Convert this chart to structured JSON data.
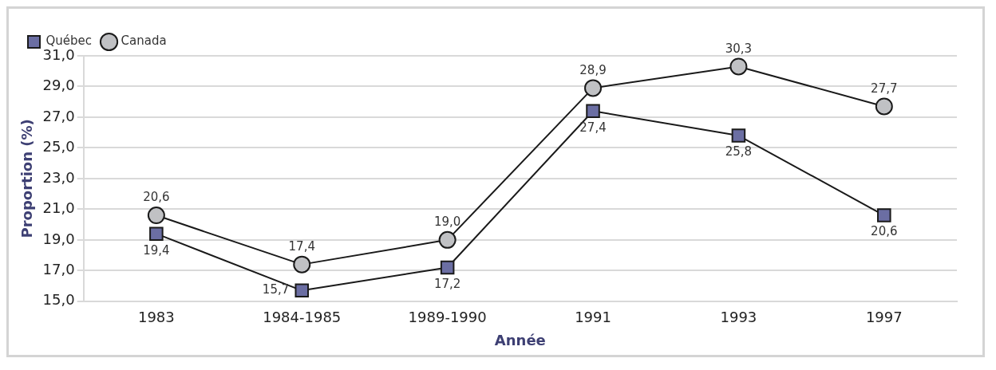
{
  "chart_data": {
    "type": "line",
    "xlabel": "Année",
    "ylabel": "Proportion (%)",
    "categories": [
      "1983",
      "1984-1985",
      "1989-1990",
      "1991",
      "1993",
      "1997"
    ],
    "series": [
      {
        "name": "Québec",
        "color": "#6b6ea3",
        "marker": "square",
        "values": [
          19.4,
          15.7,
          17.2,
          27.4,
          25.8,
          20.6
        ],
        "value_labels": [
          "19,4",
          "15,7",
          "17,2",
          "27,4",
          "25,8",
          "20,6"
        ]
      },
      {
        "name": "Canada",
        "color": "#c0c1c4",
        "marker": "circle",
        "values": [
          20.6,
          17.4,
          19.0,
          28.9,
          30.3,
          27.7
        ],
        "value_labels": [
          "20,6",
          "17,4",
          "19,0",
          "28,9",
          "30,3",
          "27,7"
        ]
      }
    ],
    "ylim": [
      15,
      31
    ],
    "yticks": [
      {
        "value": 15,
        "label": "15,0"
      },
      {
        "value": 17,
        "label": "17,0"
      },
      {
        "value": 19,
        "label": "19,0"
      },
      {
        "value": 21,
        "label": "21,0"
      },
      {
        "value": 23,
        "label": "23,0"
      },
      {
        "value": 25,
        "label": "25,0"
      },
      {
        "value": 27,
        "label": "27,0"
      },
      {
        "value": 29,
        "label": "29,0"
      },
      {
        "value": 31,
        "label": "31,0"
      }
    ],
    "grid": "y",
    "legend": "top left",
    "line_style": "solid"
  }
}
